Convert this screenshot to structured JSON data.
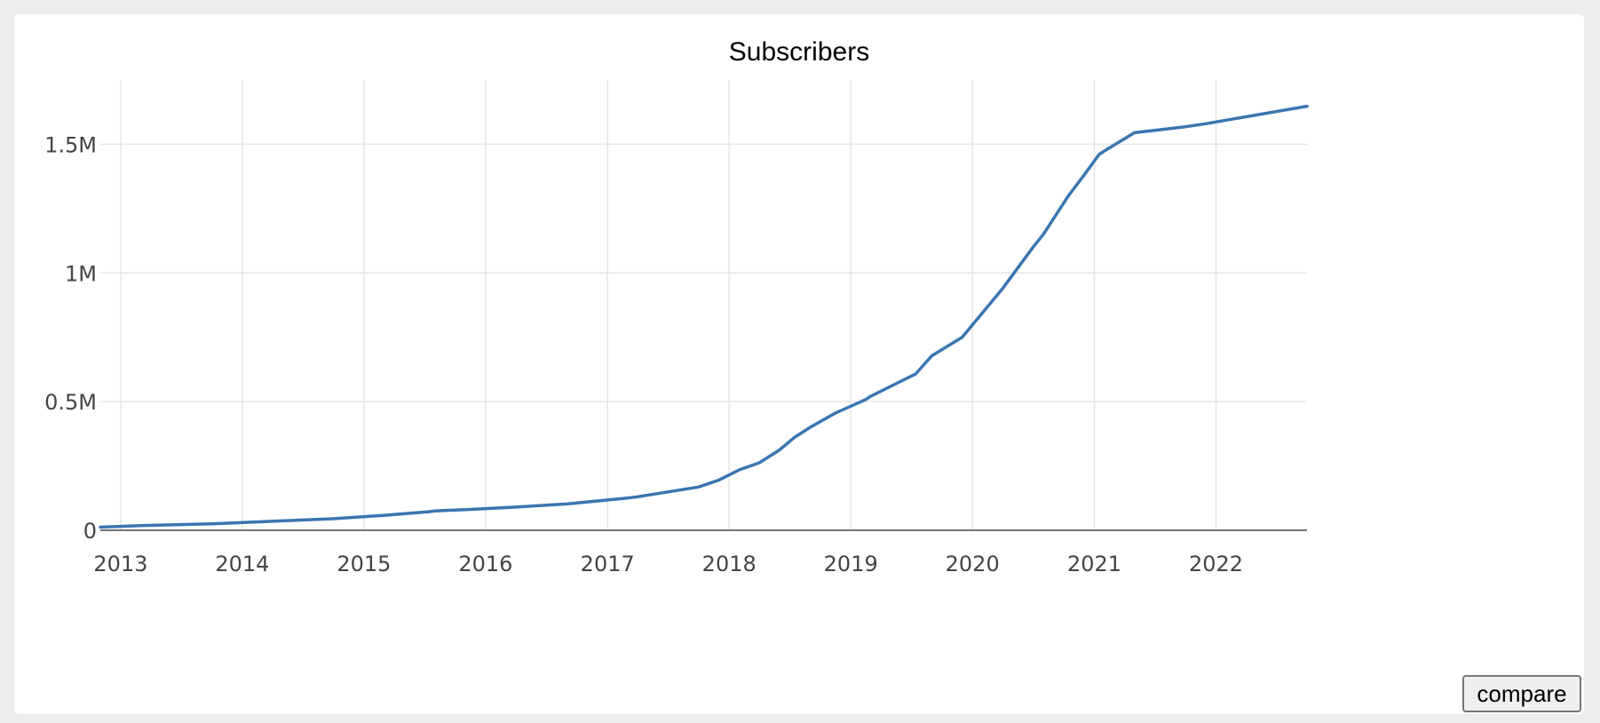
{
  "chart_data": {
    "type": "line",
    "title": "Subscribers",
    "xlabel": "",
    "ylabel": "",
    "x_ticks": [
      "2013",
      "2014",
      "2015",
      "2016",
      "2017",
      "2018",
      "2019",
      "2020",
      "2021",
      "2022"
    ],
    "y_ticks": [
      {
        "value": 0,
        "label": "0"
      },
      {
        "value": 500000,
        "label": "0.5M"
      },
      {
        "value": 1000000,
        "label": "1M"
      },
      {
        "value": 1500000,
        "label": "1.5M"
      }
    ],
    "xlim": [
      "2012-11-01",
      "2022-10-01"
    ],
    "ylim": [
      0,
      1750000
    ],
    "grid": true,
    "line_color": "#3a76b0",
    "series": [
      {
        "x": [
          "2012-11-01",
          "2013-03-01",
          "2013-10-01",
          "2014-04-01",
          "2014-10-01",
          "2015-03-01",
          "2015-07-15",
          "2015-08-01",
          "2015-12-01",
          "2016-04-01",
          "2016-09-01",
          "2017-03-01",
          "2017-04-01",
          "2017-10-01",
          "2017-12-01",
          "2018-02-01",
          "2018-04-01",
          "2018-06-01",
          "2018-07-15",
          "2018-09-01",
          "2018-11-15",
          "2019-02-15",
          "2019-03-01",
          "2019-07-15",
          "2019-09-01",
          "2019-12-01",
          "2020-04-01",
          "2020-07-01",
          "2020-08-01",
          "2020-10-15",
          "2020-12-01",
          "2021-01-15",
          "2021-02-01",
          "2021-05-01",
          "2021-10-01",
          "2021-12-01",
          "2022-10-01"
        ],
        "y": [
          12000,
          18000,
          25000,
          35000,
          45000,
          58000,
          72000,
          75000,
          82000,
          90000,
          102000,
          125000,
          130000,
          168000,
          195000,
          235000,
          262000,
          312000,
          360000,
          400000,
          455000,
          508000,
          520000,
          608000,
          678000,
          750000,
          940000,
          1100000,
          1150000,
          1300000,
          1380000,
          1460000,
          1475000,
          1545000,
          1568000,
          1580000,
          1648000
        ]
      }
    ]
  },
  "controls": {
    "compare_label": "compare"
  }
}
